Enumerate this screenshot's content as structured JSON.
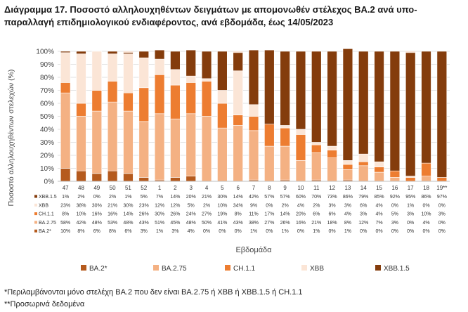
{
  "title": "Διάγραμμα 17. Ποσοστό αλληλουχηθέντων δειγμάτων με απομονωθέν στέλεχος BA.2 ανά υπο-παραλλαγή επιδημιολογικού ενδιαφέροντος, ανά εβδομάδα, έως 14/05/2023",
  "footnotes": [
    "*Περιλαμβάνονται μόνο στελέχη BA.2 που δεν είναι BA.2.75 ή XBB ή XBB.1.5 ή CH.1.1",
    "**Προσωρινά δεδομένα"
  ],
  "chart_data": {
    "type": "bar",
    "stacked": true,
    "percent": true,
    "title": "Διάγραμμα 17. Ποσοστό αλληλουχηθέντων δειγμάτων με απομονωθέν στέλεχος BA.2 ανά υπο-παραλλαγή επιδημιολογικού ενδιαφέροντος, ανά εβδομάδα, έως 14/05/2023",
    "xlabel": "Εβδομάδα",
    "ylabel": "Ποσοστό αλληλουχηθέντων στελεχών (%)",
    "ylim": [
      0,
      100
    ],
    "yticks": [
      "0%",
      "10%",
      "20%",
      "30%",
      "40%",
      "50%",
      "60%",
      "70%",
      "80%",
      "90%",
      "100%"
    ],
    "categories": [
      "47",
      "48",
      "49",
      "50",
      "51",
      "52",
      "1",
      "2",
      "3",
      "4",
      "5",
      "6",
      "7",
      "8",
      "9",
      "10",
      "11",
      "12",
      "13",
      "14",
      "15",
      "16",
      "17",
      "18",
      "19**"
    ],
    "series": [
      {
        "name": "BA.2*",
        "color": "#b55a1d",
        "values": [
          10,
          8,
          6,
          8,
          6,
          3,
          1,
          3,
          4,
          0,
          0,
          0,
          1,
          0,
          1,
          0,
          1,
          0,
          1,
          0,
          0,
          0,
          0,
          0,
          0
        ],
        "labels": [
          "10%",
          "8%",
          "6%",
          "8%",
          "6%",
          "3%",
          "1%",
          "3%",
          "4%",
          "0%",
          "0%",
          "0%",
          "1%",
          "0%",
          "1%",
          "0%",
          "1%",
          "0%",
          "1%",
          "0%",
          "0%",
          "0%",
          "0%",
          "0%",
          "0%"
        ]
      },
      {
        "name": "BA.2.75",
        "color": "#f4b183",
        "values": [
          58,
          42,
          48,
          53,
          48,
          43,
          51,
          45,
          48,
          50,
          41,
          43,
          38,
          27,
          26,
          16,
          21,
          18,
          8,
          12,
          7,
          3,
          0,
          4,
          0
        ],
        "labels": [
          "58%",
          "42%",
          "48%",
          "53%",
          "48%",
          "43%",
          "51%",
          "45%",
          "48%",
          "50%",
          "41%",
          "43%",
          "38%",
          "27%",
          "26%",
          "16%",
          "21%",
          "18%",
          "8%",
          "12%",
          "7%",
          "3%",
          "0%",
          "4%",
          "0%"
        ]
      },
      {
        "name": "CH.1.1",
        "color": "#ed7d31",
        "values": [
          8,
          10,
          16,
          16,
          14,
          26,
          30,
          26,
          24,
          27,
          19,
          8,
          11,
          17,
          14,
          20,
          6,
          6,
          4,
          3,
          4,
          5,
          3,
          10,
          3
        ],
        "labels": [
          "8%",
          "10%",
          "16%",
          "16%",
          "14%",
          "26%",
          "30%",
          "26%",
          "24%",
          "27%",
          "19%",
          "8%",
          "11%",
          "17%",
          "14%",
          "20%",
          "6%",
          "6%",
          "4%",
          "3%",
          "4%",
          "5%",
          "3%",
          "10%",
          "3%"
        ]
      },
      {
        "name": "XBB",
        "color": "#fbe5d6",
        "values": [
          23,
          38,
          30,
          21,
          30,
          23,
          12,
          12,
          5,
          2,
          10,
          34,
          9,
          0,
          2,
          4,
          2,
          3,
          3,
          6,
          4,
          0,
          1,
          0,
          0
        ],
        "labels": [
          "23%",
          "38%",
          "30%",
          "21%",
          "30%",
          "23%",
          "12%",
          "12%",
          "5%",
          "2%",
          "10%",
          "34%",
          "9%",
          "0%",
          "2%",
          "4%",
          "2%",
          "3%",
          "3%",
          "6%",
          "4%",
          "0%",
          "1%",
          "0%",
          "0%"
        ]
      },
      {
        "name": "XBB.1.5",
        "color": "#843c0c",
        "values": [
          1,
          2,
          0,
          2,
          1,
          5,
          7,
          14,
          20,
          21,
          30,
          14,
          42,
          57,
          57,
          60,
          70,
          73,
          86,
          79,
          85,
          92,
          95,
          86,
          97
        ],
        "labels": [
          "1%",
          "2%",
          "0%",
          "2%",
          "1%",
          "5%",
          "7%",
          "14%",
          "20%",
          "21%",
          "30%",
          "14%",
          "42%",
          "57%",
          "57%",
          "60%",
          "70%",
          "73%",
          "86%",
          "79%",
          "85%",
          "92%",
          "95%",
          "86%",
          "97%"
        ]
      }
    ],
    "table_rows": [
      "XBB.1.5",
      "XBB",
      "CH.1.1",
      "BA.2.75",
      "BA.2*"
    ],
    "legend_position": "bottom"
  }
}
